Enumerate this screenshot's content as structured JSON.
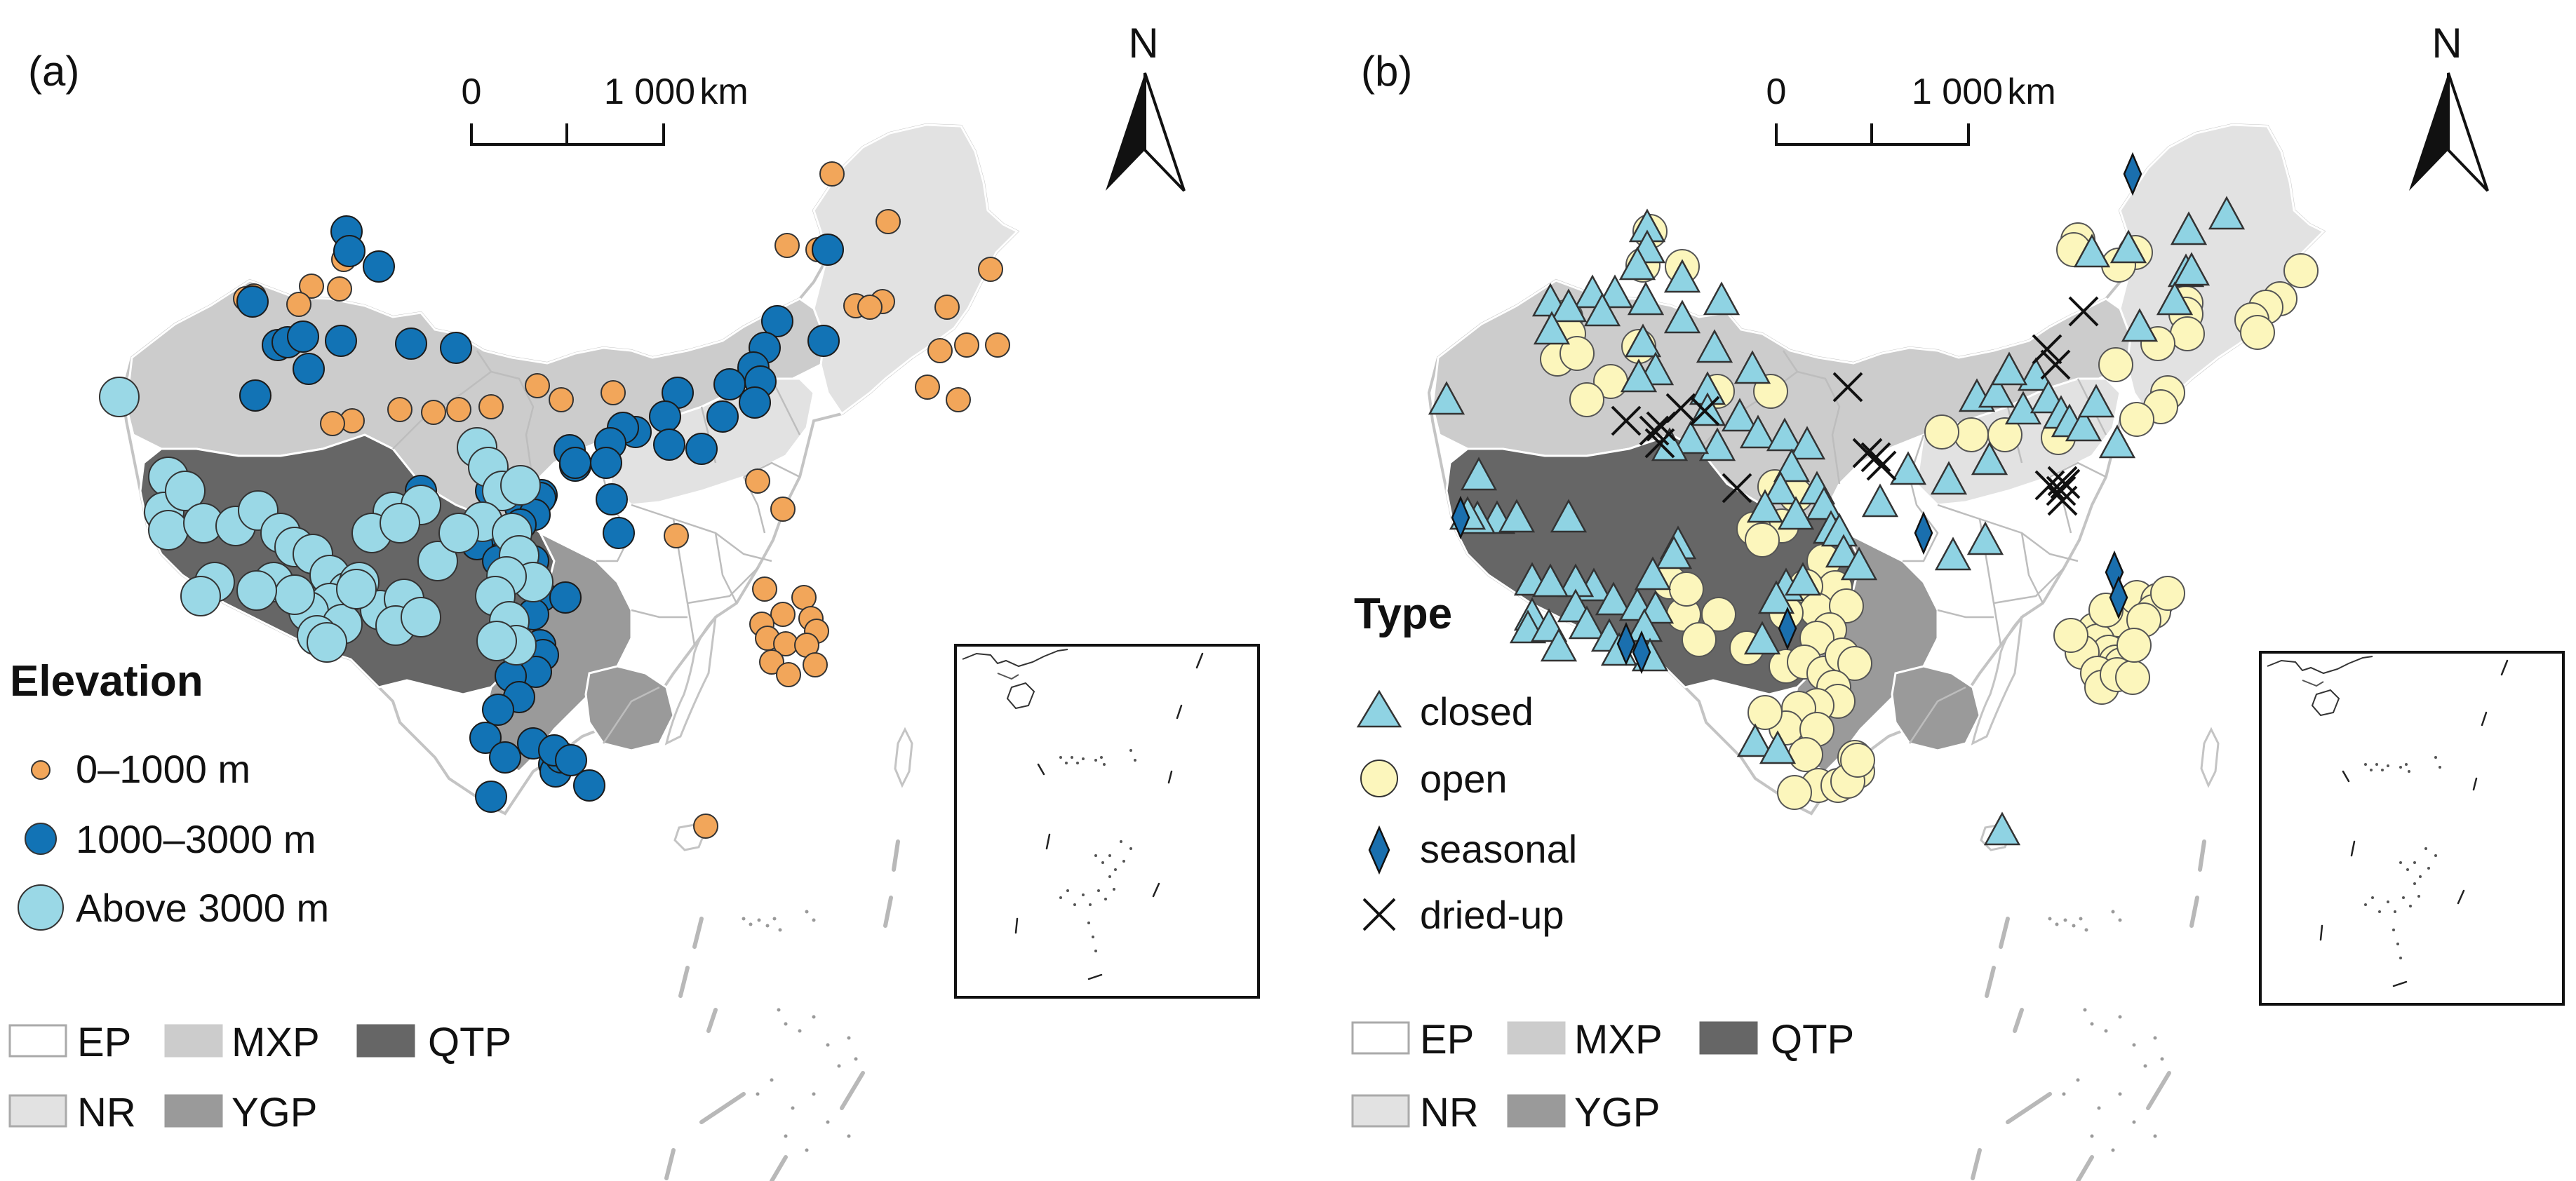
{
  "panels": [
    {
      "id": "a",
      "label": "(a)",
      "scale": {
        "zero": "0",
        "dist": "1 000",
        "unit": "km"
      },
      "north": "N",
      "legend": {
        "title": "Elevation",
        "items": [
          {
            "label": "0–1000 m",
            "symbol": "circle-small",
            "color": "#f2a65a"
          },
          {
            "label": "1000–3000 m",
            "symbol": "circle-medium",
            "color": "#1273b5"
          },
          {
            "label": "Above 3000 m",
            "symbol": "circle-large",
            "color": "#9ad8e6"
          }
        ]
      }
    },
    {
      "id": "b",
      "label": "(b)",
      "scale": {
        "zero": "0",
        "dist": "1 000",
        "unit": "km"
      },
      "north": "N",
      "legend": {
        "title": "Type",
        "items": [
          {
            "label": "closed",
            "symbol": "triangle",
            "color": "#8fd3e3"
          },
          {
            "label": "open",
            "symbol": "circle",
            "color": "#fcf6bc"
          },
          {
            "label": "seasonal",
            "symbol": "diamond",
            "color": "#1a6fae"
          },
          {
            "label": "dried-up",
            "symbol": "cross",
            "color": "#111111"
          }
        ]
      }
    }
  ],
  "regions": [
    {
      "code": "EP",
      "color": "#ffffff"
    },
    {
      "code": "MXP",
      "color": "#cccccc"
    },
    {
      "code": "QTP",
      "color": "#666666"
    },
    {
      "code": "NR",
      "color": "#e2e2e2"
    },
    {
      "code": "YGP",
      "color": "#9a9a9a"
    }
  ],
  "colors": {
    "small": "#f2a65a",
    "medium": "#1273b5",
    "large": "#9ad8e6",
    "closed": "#8fd3e3",
    "open": "#fcf6bc",
    "seasonal": "#1a6fae",
    "dried": "#111111"
  }
}
